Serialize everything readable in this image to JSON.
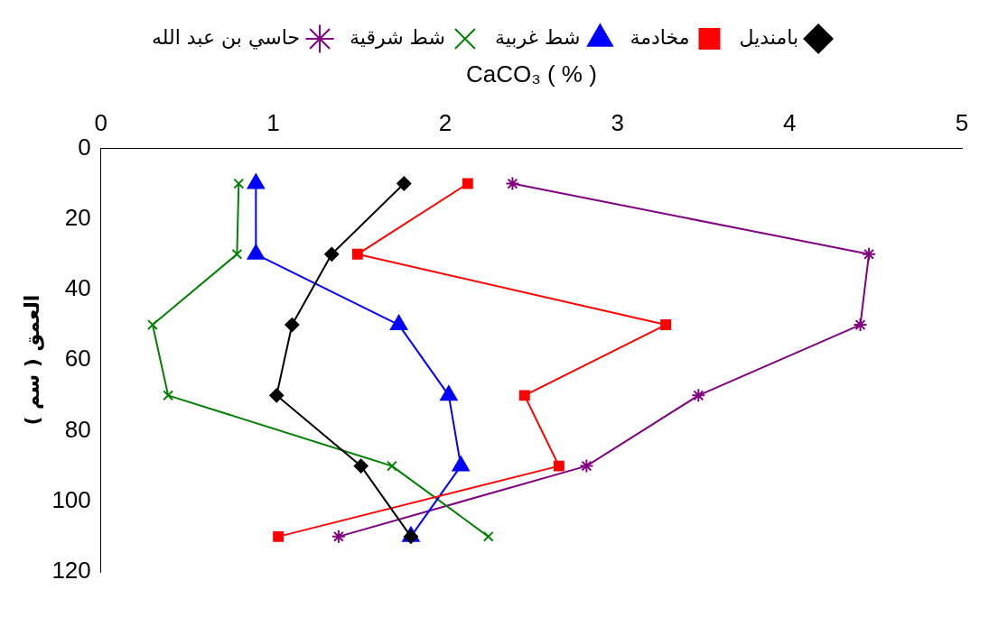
{
  "chart_data": {
    "type": "line",
    "xlabel": "CaCO₃ ( % )",
    "ylabel": "العمق ( سم )",
    "xlim": [
      0,
      5
    ],
    "xticks": [
      0,
      1,
      2,
      3,
      4,
      5
    ],
    "ylim": [
      120,
      0
    ],
    "yticks": [
      0,
      20,
      40,
      60,
      80,
      100,
      120
    ],
    "grid": false,
    "legend": "top",
    "series": [
      {
        "name": "بامنديل",
        "color": "#000000",
        "marker": "diamond",
        "x": [
          1.76,
          1.34,
          1.11,
          1.02,
          1.51,
          1.8
        ],
        "values": [
          10,
          30,
          50,
          70,
          90,
          110
        ]
      },
      {
        "name": "مخادمة",
        "color": "#ff0000",
        "marker": "square",
        "x": [
          2.13,
          1.49,
          3.28,
          2.46,
          2.66,
          1.03
        ],
        "values": [
          10,
          30,
          50,
          70,
          90,
          110
        ]
      },
      {
        "name": "شط غربية",
        "color": "#0000ff",
        "marker": "triangle",
        "x": [
          0.9,
          0.9,
          1.73,
          2.02,
          2.09,
          1.8
        ],
        "values": [
          10,
          30,
          50,
          70,
          90,
          110
        ]
      },
      {
        "name": "شط شرقية",
        "color": "#008000",
        "marker": "cross",
        "x": [
          0.8,
          0.79,
          0.3,
          0.39,
          1.69,
          2.25
        ],
        "values": [
          10,
          30,
          50,
          70,
          90,
          110
        ]
      },
      {
        "name": "حاسي بن عبد الله",
        "color": "#800080",
        "marker": "cross",
        "x": [
          2.39,
          4.46,
          4.41,
          3.47,
          2.82,
          1.38
        ],
        "values": [
          10,
          30,
          50,
          70,
          90,
          110
        ]
      }
    ]
  }
}
